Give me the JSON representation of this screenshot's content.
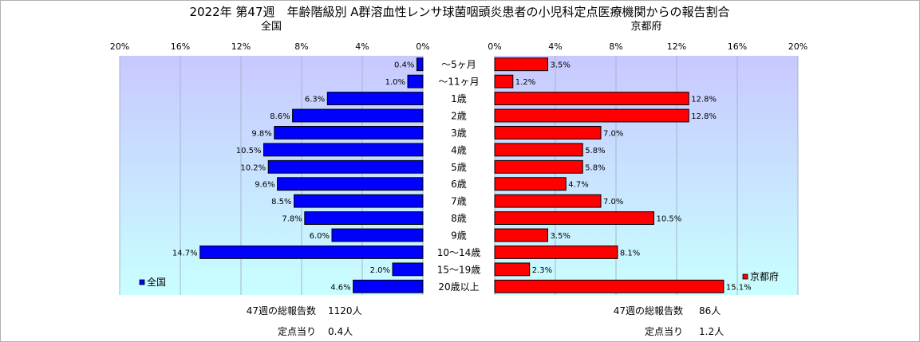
{
  "title": "2022年 第47週　年齢階級別 A群溶血性レンサ球菌咽頭炎患者の小児科定点医療機関からの報告割合",
  "colors": {
    "national": "#0000ff",
    "tokyo": "#ff0000",
    "plot_bg_top": "#c8c8ff",
    "plot_bg_bottom": "#c8ffff"
  },
  "chart_data": [
    {
      "type": "bar",
      "orientation": "horizontal",
      "subtitle": "全国",
      "legend": "全国",
      "legend_position": "bottom-left",
      "categories": [
        "～5ヶ月",
        "～11ヶ月",
        "1歳",
        "2歳",
        "3歳",
        "4歳",
        "5歳",
        "6歳",
        "7歳",
        "8歳",
        "9歳",
        "10～14歳",
        "15～19歳",
        "20歳以上"
      ],
      "values": [
        0.4,
        1.0,
        6.3,
        8.6,
        9.8,
        10.5,
        10.2,
        9.6,
        8.5,
        7.8,
        6.0,
        14.7,
        2.0,
        4.6
      ],
      "labels": [
        "0.4%",
        "1.0%",
        "6.3%",
        "8.6%",
        "9.8%",
        "10.5%",
        "10.2%",
        "9.6%",
        "8.5%",
        "7.8%",
        "6.0%",
        "14.7%",
        "2.0%",
        "4.6%"
      ],
      "xlim": [
        0,
        20
      ],
      "ticks": [
        "20%",
        "16%",
        "12%",
        "8%",
        "4%",
        "0%"
      ],
      "direction": "reversed",
      "grid": true
    },
    {
      "type": "bar",
      "orientation": "horizontal",
      "subtitle": "京都府",
      "legend": "京都府",
      "legend_position": "bottom-right",
      "categories": [
        "～5ヶ月",
        "～11ヶ月",
        "1歳",
        "2歳",
        "3歳",
        "4歳",
        "5歳",
        "6歳",
        "7歳",
        "8歳",
        "9歳",
        "10～14歳",
        "15～19歳",
        "20歳以上"
      ],
      "values": [
        3.5,
        1.2,
        12.8,
        12.8,
        7.0,
        5.8,
        5.8,
        4.7,
        7.0,
        10.5,
        3.5,
        8.1,
        2.3,
        15.1
      ],
      "labels": [
        "3.5%",
        "1.2%",
        "12.8%",
        "12.8%",
        "7.0%",
        "5.8%",
        "5.8%",
        "4.7%",
        "7.0%",
        "10.5%",
        "3.5%",
        "8.1%",
        "2.3%",
        "15.1%"
      ],
      "xlim": [
        0,
        20
      ],
      "ticks": [
        "0%",
        "4%",
        "8%",
        "12%",
        "16%",
        "20%"
      ],
      "direction": "normal",
      "grid": true
    }
  ],
  "footer": {
    "national": {
      "total_label": "47週の総報告数",
      "total_value": "1120人",
      "per_label": "定点当り",
      "per_value": "0.4人"
    },
    "tokyo": {
      "total_label": "47週の総報告数",
      "total_value": "86人",
      "per_label": "定点当り",
      "per_value": "1.2人"
    }
  }
}
